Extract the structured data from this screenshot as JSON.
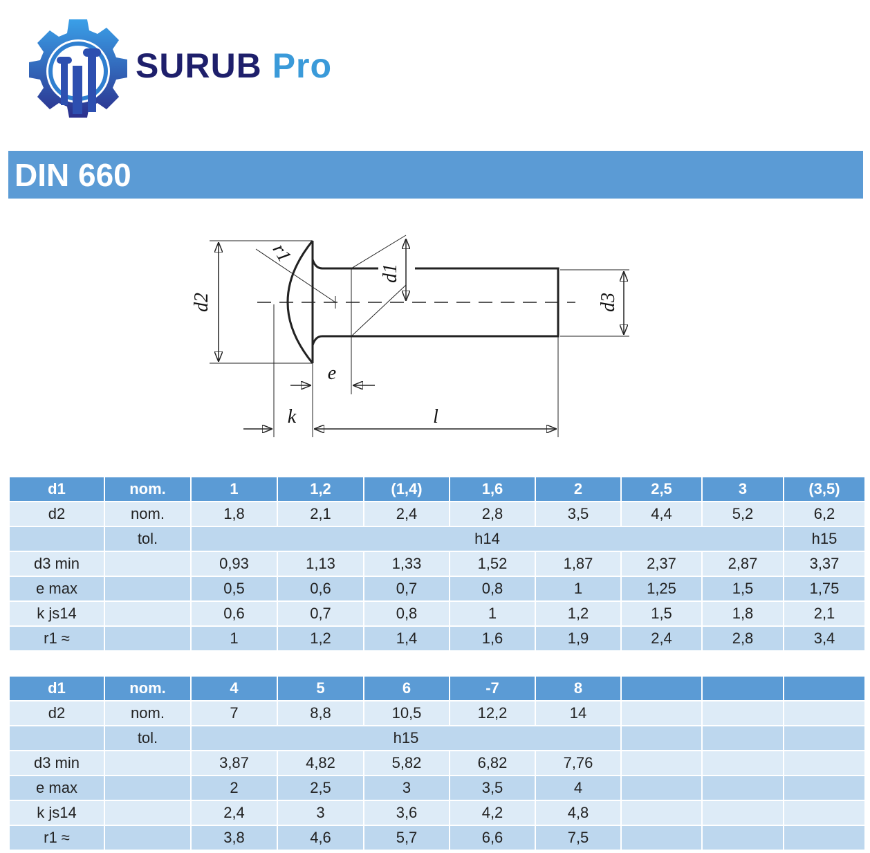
{
  "header": {
    "brand": "SURUB",
    "brand_accent": "Pro"
  },
  "title": "DIN 660",
  "diagram": {
    "labels": {
      "d2": "d2",
      "r1": "r1",
      "d1": "d1",
      "d3": "d3",
      "e": "e",
      "k": "k",
      "l": "l"
    }
  },
  "tables": [
    {
      "header": [
        "d1",
        "nom.",
        "1",
        "1,2",
        "(1,4)",
        "1,6",
        "2",
        "2,5",
        "3",
        "(3,5)"
      ],
      "rows": [
        {
          "label": "d2",
          "sub": "nom.",
          "values": [
            "1,8",
            "2,1",
            "2,4",
            "2,8",
            "3,5",
            "4,4",
            "5,2",
            "6,2"
          ]
        },
        {
          "sub": "tol.",
          "values": [
            "h14",
            "h15"
          ]
        },
        {
          "label": "d3 min",
          "values": [
            "0,93",
            "1,13",
            "1,33",
            "1,52",
            "1,87",
            "2,37",
            "2,87",
            "3,37"
          ]
        },
        {
          "label": "e max",
          "values": [
            "0,5",
            "0,6",
            "0,7",
            "0,8",
            "1",
            "1,25",
            "1,5",
            "1,75"
          ]
        },
        {
          "label": "k js14",
          "values": [
            "0,6",
            "0,7",
            "0,8",
            "1",
            "1,2",
            "1,5",
            "1,8",
            "2,1"
          ]
        },
        {
          "label": "r1 ≈",
          "values": [
            "1",
            "1,2",
            "1,4",
            "1,6",
            "1,9",
            "2,4",
            "2,8",
            "3,4"
          ]
        }
      ]
    },
    {
      "header": [
        "d1",
        "nom.",
        "4",
        "5",
        "6",
        "-7",
        "8"
      ],
      "rows": [
        {
          "label": "d2",
          "sub": "nom.",
          "values": [
            "7",
            "8,8",
            "10,5",
            "12,2",
            "14"
          ]
        },
        {
          "sub": "tol.",
          "values": [
            "h15"
          ]
        },
        {
          "label": "d3 min",
          "values": [
            "3,87",
            "4,82",
            "5,82",
            "6,82",
            "7,76"
          ]
        },
        {
          "label": "e max",
          "values": [
            "2",
            "2,5",
            "3",
            "3,5",
            "4"
          ]
        },
        {
          "label": "k js14",
          "values": [
            "2,4",
            "3",
            "3,6",
            "4,2",
            "4,8"
          ]
        },
        {
          "label": "r1 ≈",
          "values": [
            "3,8",
            "4,6",
            "5,7",
            "6,6",
            "7,5"
          ]
        }
      ]
    }
  ]
}
